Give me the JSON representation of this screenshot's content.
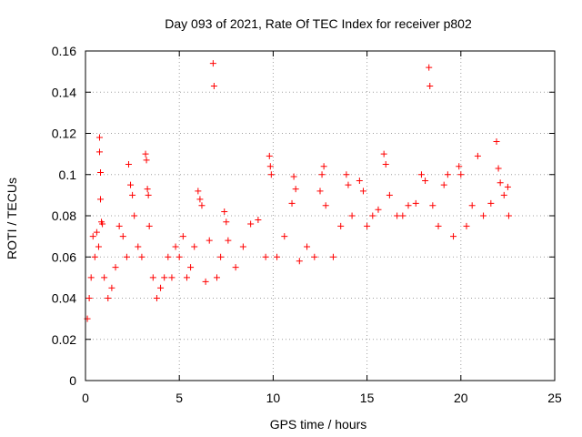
{
  "chart_data": {
    "type": "scatter",
    "title": "Day 093 of 2021, Rate Of TEC Index for receiver p802",
    "xlabel": "GPS time / hours",
    "ylabel": "ROTI / TECUs",
    "xlim": [
      0,
      25
    ],
    "ylim": [
      0,
      0.16
    ],
    "xticks": [
      0,
      5,
      10,
      15,
      20,
      25
    ],
    "xtick_labels": [
      "0",
      "5",
      "10",
      "15",
      "20",
      "25"
    ],
    "yticks": [
      0,
      0.02,
      0.04,
      0.06,
      0.08,
      0.1,
      0.12,
      0.14,
      0.16
    ],
    "ytick_labels": [
      "0",
      "0.02",
      "0.04",
      "0.06",
      "0.08",
      "0.1",
      "0.12",
      "0.14",
      "0.16"
    ],
    "grid": true,
    "marker": "+",
    "color": "#ff0000",
    "series": [
      {
        "points": [
          [
            0.1,
            0.03
          ],
          [
            0.2,
            0.04
          ],
          [
            0.3,
            0.05
          ],
          [
            0.4,
            0.07
          ],
          [
            0.5,
            0.06
          ],
          [
            0.6,
            0.072
          ],
          [
            0.7,
            0.065
          ],
          [
            0.75,
            0.118
          ],
          [
            0.75,
            0.111
          ],
          [
            0.8,
            0.101
          ],
          [
            0.8,
            0.088
          ],
          [
            0.85,
            0.077
          ],
          [
            0.9,
            0.076
          ],
          [
            1.0,
            0.05
          ],
          [
            1.2,
            0.04
          ],
          [
            1.4,
            0.045
          ],
          [
            1.6,
            0.055
          ],
          [
            1.8,
            0.075
          ],
          [
            2.0,
            0.07
          ],
          [
            2.2,
            0.06
          ],
          [
            2.3,
            0.105
          ],
          [
            2.4,
            0.095
          ],
          [
            2.5,
            0.09
          ],
          [
            2.6,
            0.08
          ],
          [
            2.8,
            0.065
          ],
          [
            3.0,
            0.06
          ],
          [
            3.2,
            0.11
          ],
          [
            3.25,
            0.107
          ],
          [
            3.3,
            0.093
          ],
          [
            3.35,
            0.09
          ],
          [
            3.4,
            0.075
          ],
          [
            3.6,
            0.05
          ],
          [
            3.8,
            0.04
          ],
          [
            4.0,
            0.045
          ],
          [
            4.2,
            0.05
          ],
          [
            4.4,
            0.06
          ],
          [
            4.6,
            0.05
          ],
          [
            4.8,
            0.065
          ],
          [
            5.0,
            0.06
          ],
          [
            5.2,
            0.07
          ],
          [
            5.4,
            0.05
          ],
          [
            5.6,
            0.055
          ],
          [
            5.8,
            0.065
          ],
          [
            6.0,
            0.092
          ],
          [
            6.1,
            0.088
          ],
          [
            6.2,
            0.085
          ],
          [
            6.4,
            0.048
          ],
          [
            6.6,
            0.068
          ],
          [
            6.8,
            0.154
          ],
          [
            6.85,
            0.143
          ],
          [
            7.0,
            0.05
          ],
          [
            7.2,
            0.06
          ],
          [
            7.4,
            0.082
          ],
          [
            7.5,
            0.077
          ],
          [
            7.6,
            0.068
          ],
          [
            8.0,
            0.055
          ],
          [
            8.4,
            0.065
          ],
          [
            8.8,
            0.076
          ],
          [
            9.2,
            0.078
          ],
          [
            9.6,
            0.06
          ],
          [
            9.8,
            0.109
          ],
          [
            9.85,
            0.104
          ],
          [
            9.9,
            0.1
          ],
          [
            10.2,
            0.06
          ],
          [
            10.6,
            0.07
          ],
          [
            11.0,
            0.086
          ],
          [
            11.1,
            0.099
          ],
          [
            11.2,
            0.093
          ],
          [
            11.4,
            0.058
          ],
          [
            11.8,
            0.065
          ],
          [
            12.2,
            0.06
          ],
          [
            12.5,
            0.092
          ],
          [
            12.6,
            0.1
          ],
          [
            12.7,
            0.104
          ],
          [
            12.8,
            0.085
          ],
          [
            13.2,
            0.06
          ],
          [
            13.6,
            0.075
          ],
          [
            13.9,
            0.1
          ],
          [
            14.0,
            0.095
          ],
          [
            14.2,
            0.08
          ],
          [
            14.6,
            0.097
          ],
          [
            14.8,
            0.092
          ],
          [
            15.0,
            0.075
          ],
          [
            15.3,
            0.08
          ],
          [
            15.6,
            0.083
          ],
          [
            15.9,
            0.11
          ],
          [
            16.0,
            0.105
          ],
          [
            16.2,
            0.09
          ],
          [
            16.6,
            0.08
          ],
          [
            16.9,
            0.08
          ],
          [
            17.2,
            0.085
          ],
          [
            17.6,
            0.086
          ],
          [
            17.9,
            0.1
          ],
          [
            18.1,
            0.097
          ],
          [
            18.3,
            0.152
          ],
          [
            18.35,
            0.143
          ],
          [
            18.5,
            0.085
          ],
          [
            18.8,
            0.075
          ],
          [
            19.1,
            0.095
          ],
          [
            19.3,
            0.1
          ],
          [
            19.6,
            0.07
          ],
          [
            19.9,
            0.104
          ],
          [
            20.0,
            0.1
          ],
          [
            20.3,
            0.075
          ],
          [
            20.6,
            0.085
          ],
          [
            20.9,
            0.109
          ],
          [
            21.2,
            0.08
          ],
          [
            21.6,
            0.086
          ],
          [
            21.9,
            0.116
          ],
          [
            22.0,
            0.103
          ],
          [
            22.1,
            0.096
          ],
          [
            22.3,
            0.09
          ],
          [
            22.5,
            0.094
          ],
          [
            22.55,
            0.08
          ]
        ]
      }
    ]
  }
}
